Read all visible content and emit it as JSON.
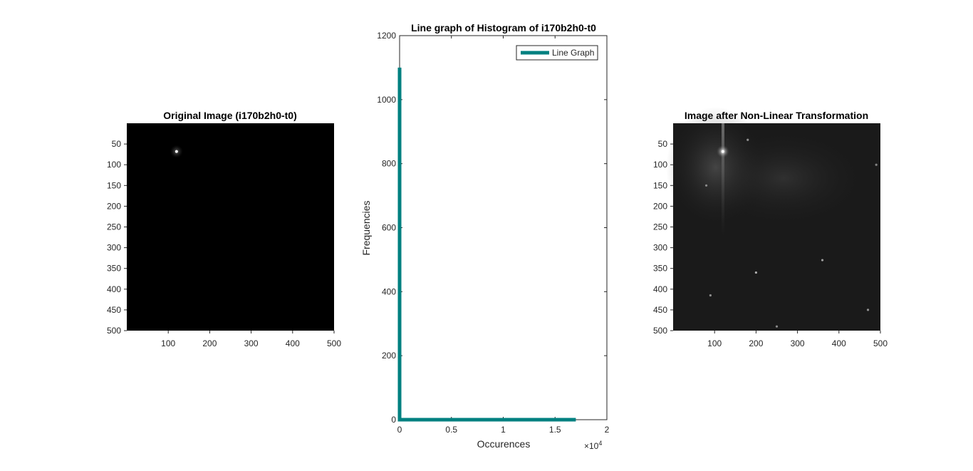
{
  "chart_data": [
    {
      "type": "image",
      "title": "Original Image (i170b2h0-t0)",
      "xticks": [
        "100",
        "200",
        "300",
        "400",
        "500"
      ],
      "yticks": [
        "50",
        "100",
        "150",
        "200",
        "250",
        "300",
        "350",
        "400",
        "450",
        "500"
      ],
      "xlim": [
        0,
        500
      ],
      "ylim": [
        0,
        500
      ],
      "background": "#000000",
      "bright_spots": [
        {
          "x": 120,
          "y": 68,
          "intensity": 1.0
        }
      ]
    },
    {
      "type": "line",
      "title": "Line graph of Histogram of i170b2h0-t0",
      "xlabel": "Occurences",
      "ylabel": "Frequencies",
      "x_exponent_label": "×10",
      "x_exponent_power": "4",
      "xlim": [
        0,
        2
      ],
      "ylim": [
        0,
        1200
      ],
      "xticks": [
        "0",
        "0.5",
        "1",
        "1.5",
        "2"
      ],
      "yticks": [
        "0",
        "200",
        "400",
        "600",
        "800",
        "1000",
        "1200"
      ],
      "legend": {
        "position": "top-right"
      },
      "series": [
        {
          "name": "Line Graph",
          "color": "#008080",
          "x": [
            0,
            0,
            0.005,
            1.7
          ],
          "y": [
            1100,
            0,
            0,
            0
          ]
        }
      ]
    },
    {
      "type": "image",
      "title": "Image after Non-Linear Transformation",
      "xticks": [
        "100",
        "200",
        "300",
        "400",
        "500"
      ],
      "yticks": [
        "50",
        "100",
        "150",
        "200",
        "250",
        "300",
        "350",
        "400",
        "450",
        "500"
      ],
      "xlim": [
        0,
        500
      ],
      "ylim": [
        0,
        500
      ],
      "background": "#1a1a1a",
      "bright_spots": [
        {
          "x": 120,
          "y": 68,
          "intensity": 1.0
        },
        {
          "x": 200,
          "y": 360,
          "intensity": 0.6
        },
        {
          "x": 360,
          "y": 330,
          "intensity": 0.5
        },
        {
          "x": 470,
          "y": 450,
          "intensity": 0.4
        },
        {
          "x": 90,
          "y": 415,
          "intensity": 0.35
        },
        {
          "x": 180,
          "y": 40,
          "intensity": 0.4
        },
        {
          "x": 250,
          "y": 490,
          "intensity": 0.35
        },
        {
          "x": 490,
          "y": 100,
          "intensity": 0.3
        },
        {
          "x": 80,
          "y": 150,
          "intensity": 0.35
        }
      ]
    }
  ]
}
